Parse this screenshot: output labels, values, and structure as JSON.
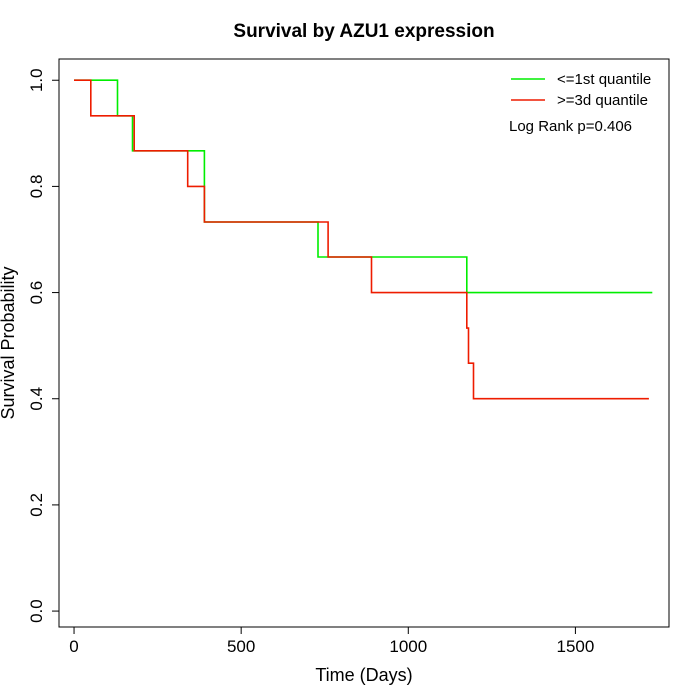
{
  "chart_data": {
    "type": "line",
    "subtype": "kaplan-meier step",
    "title": "Survival by AZU1 expression",
    "xlabel": "Time (Days)",
    "ylabel": "Survival Probability",
    "xlim": [
      -45,
      1780
    ],
    "ylim": [
      -0.03,
      1.04
    ],
    "xticks": [
      0,
      500,
      1000,
      1500
    ],
    "xtick_labels": [
      "0",
      "500",
      "1000",
      "1500"
    ],
    "yticks": [
      0.0,
      0.2,
      0.4,
      0.6,
      0.8,
      1.0
    ],
    "ytick_labels": [
      "0.0",
      "0.2",
      "0.4",
      "0.6",
      "0.8",
      "1.0"
    ],
    "grid": false,
    "legend_position": "top-right",
    "annotation": "Log Rank p=0.406",
    "series": [
      {
        "name": "<=1st quantile",
        "color": "#00ee00",
        "x": [
          0,
          130,
          130,
          175,
          175,
          390,
          390,
          730,
          730,
          1175,
          1175,
          1730
        ],
        "y": [
          1.0,
          1.0,
          0.933,
          0.933,
          0.867,
          0.867,
          0.733,
          0.733,
          0.667,
          0.667,
          0.6,
          0.6
        ]
      },
      {
        "name": ">=3d quantile",
        "color": "#ee1c00",
        "x": [
          0,
          50,
          50,
          180,
          180,
          340,
          340,
          390,
          390,
          760,
          760,
          890,
          890,
          1175,
          1175,
          1180,
          1180,
          1195,
          1195,
          1720
        ],
        "y": [
          1.0,
          1.0,
          0.933,
          0.933,
          0.867,
          0.867,
          0.8,
          0.8,
          0.733,
          0.733,
          0.667,
          0.667,
          0.6,
          0.6,
          0.533,
          0.533,
          0.467,
          0.467,
          0.4,
          0.4
        ]
      }
    ]
  }
}
